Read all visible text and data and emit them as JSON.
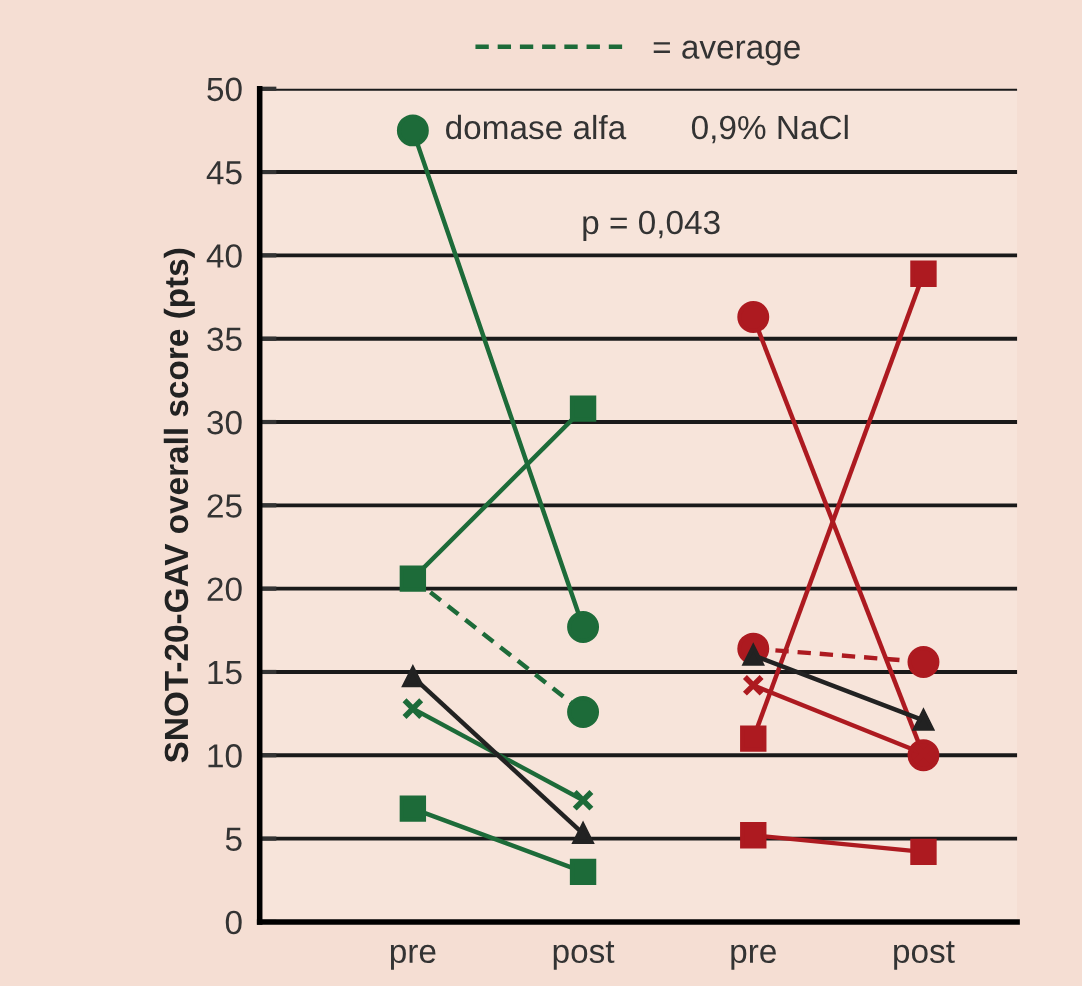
{
  "chart_data": {
    "type": "line",
    "ylabel": "SNOT-20-GAV overall score (pts)",
    "categories": [
      "pre",
      "post",
      "pre",
      "post"
    ],
    "ylim": [
      0,
      50
    ],
    "yticks": [
      0,
      5,
      10,
      15,
      20,
      25,
      30,
      35,
      40,
      45,
      50
    ],
    "grid": "y",
    "legend": "top",
    "annotations": [
      "domase alfa",
      "0,9% NaCl",
      "p = 0,043"
    ],
    "series": [
      {
        "color": "#1d6b39",
        "marker": "circle",
        "values": [
          47.5,
          17.7,
          null,
          null
        ]
      },
      {
        "color": "#1d6b39",
        "marker": "square",
        "values": [
          20.6,
          30.8,
          null,
          null
        ]
      },
      {
        "color": "#1d6b39",
        "marker": "cross",
        "values": [
          12.8,
          7.3,
          null,
          null
        ]
      },
      {
        "color": "#1d6b39",
        "marker": "square",
        "values": [
          6.8,
          3.0,
          null,
          null
        ]
      },
      {
        "color": "#222222",
        "marker": "triangle",
        "values": [
          14.7,
          5.3,
          null,
          null
        ]
      },
      {
        "name": "= average",
        "color": "#1d6b39",
        "marker": "circle",
        "line_style": "dashed",
        "values": [
          20.6,
          12.6,
          null,
          null
        ]
      },
      {
        "color": "#ad1a20",
        "marker": "circle",
        "values": [
          null,
          null,
          36.3,
          10.0
        ]
      },
      {
        "color": "#ad1a20",
        "marker": "square",
        "values": [
          null,
          null,
          11.0,
          38.9
        ]
      },
      {
        "color": "#ad1a20",
        "marker": "cross",
        "values": [
          null,
          null,
          14.2,
          10.1
        ]
      },
      {
        "color": "#ad1a20",
        "marker": "square",
        "values": [
          null,
          null,
          5.2,
          4.2
        ]
      },
      {
        "color": "#222222",
        "marker": "triangle",
        "values": [
          null,
          null,
          16.0,
          12.1
        ]
      },
      {
        "color": "#ad1a20",
        "marker": "circle",
        "line_style": "dashed",
        "values": [
          null,
          null,
          16.4,
          15.6
        ]
      }
    ]
  }
}
